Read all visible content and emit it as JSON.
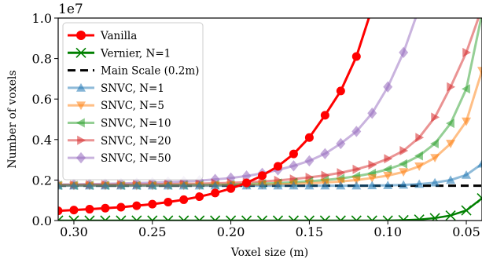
{
  "chart_data": {
    "type": "line",
    "title": "",
    "xlabel": "Voxel size (m)",
    "ylabel": "Number of voxels",
    "y_multiplier_label": "1e7",
    "x_range": [
      0.31,
      0.04
    ],
    "x_inverted": true,
    "y_range": [
      0.0,
      1.0
    ],
    "y_unit_multiplier": 10000000,
    "x_ticks": [
      0.3,
      0.25,
      0.2,
      0.15,
      0.1,
      0.05
    ],
    "x_tick_labels": [
      "0.30",
      "0.25",
      "0.20",
      "0.15",
      "0.10",
      "0.05"
    ],
    "y_ticks": [
      0.0,
      0.2,
      0.4,
      0.6,
      0.8,
      1.0
    ],
    "y_tick_labels": [
      "0.0",
      "0.2",
      "0.4",
      "0.6",
      "0.8",
      "1.0"
    ],
    "grid": false,
    "legend_position": "top-left",
    "x": [
      0.31,
      0.3,
      0.29,
      0.28,
      0.27,
      0.26,
      0.25,
      0.24,
      0.23,
      0.22,
      0.21,
      0.2,
      0.19,
      0.18,
      0.17,
      0.16,
      0.15,
      0.14,
      0.13,
      0.12,
      0.11,
      0.1,
      0.09,
      0.08,
      0.07,
      0.06,
      0.05,
      0.04
    ],
    "series": [
      {
        "name": "Vanilla",
        "color": "#ff0000",
        "marker": "circle",
        "style": "solid",
        "values": [
          0.048,
          0.052,
          0.056,
          0.061,
          0.066,
          0.073,
          0.081,
          0.091,
          0.103,
          0.118,
          0.136,
          0.158,
          0.186,
          0.222,
          0.268,
          0.329,
          0.41,
          0.52,
          0.64,
          0.81,
          1.05,
          null,
          null,
          null,
          null,
          null,
          null,
          null
        ]
      },
      {
        "name": "Vernier, N=1",
        "color": "#008000",
        "marker": "x",
        "style": "solid",
        "values": [
          0.0,
          0.0,
          0.0,
          0.0,
          0.0,
          0.0,
          0.0,
          0.0,
          0.0,
          0.0,
          0.0,
          0.0,
          0.0,
          0.0,
          0.0,
          0.0,
          0.0,
          0.0,
          0.0,
          0.0,
          0.0,
          0.0,
          0.002,
          0.005,
          0.012,
          0.025,
          0.05,
          0.11
        ]
      },
      {
        "name": "Main Scale (0.2m)",
        "color": "#000000",
        "marker": "none",
        "style": "dashed",
        "values": [
          0.172,
          0.172,
          0.172,
          0.172,
          0.172,
          0.172,
          0.172,
          0.172,
          0.172,
          0.172,
          0.172,
          0.172,
          0.172,
          0.172,
          0.172,
          0.172,
          0.172,
          0.172,
          0.172,
          0.172,
          0.172,
          0.172,
          0.172,
          0.172,
          0.172,
          0.172,
          0.172,
          0.172
        ]
      },
      {
        "name": "SNVC, N=1",
        "color": "#1f77b4",
        "marker": "triangle-up",
        "style": "solid",
        "values": [
          0.172,
          0.172,
          0.172,
          0.172,
          0.172,
          0.172,
          0.172,
          0.172,
          0.172,
          0.172,
          0.172,
          0.172,
          0.172,
          0.172,
          0.172,
          0.172,
          0.172,
          0.172,
          0.172,
          0.172,
          0.173,
          0.174,
          0.176,
          0.18,
          0.187,
          0.2,
          0.225,
          0.28
        ]
      },
      {
        "name": "SNVC, N=5",
        "color": "#ff7f0e",
        "marker": "triangle-down",
        "style": "solid",
        "values": [
          0.173,
          0.173,
          0.173,
          0.173,
          0.173,
          0.173,
          0.173,
          0.173,
          0.173,
          0.173,
          0.174,
          0.175,
          0.176,
          0.177,
          0.179,
          0.181,
          0.184,
          0.188,
          0.193,
          0.2,
          0.21,
          0.222,
          0.24,
          0.268,
          0.31,
          0.38,
          0.49,
          0.74
        ]
      },
      {
        "name": "SNVC, N=10",
        "color": "#2ca02c",
        "marker": "triangle-left",
        "style": "solid",
        "values": [
          0.174,
          0.174,
          0.174,
          0.174,
          0.174,
          0.174,
          0.174,
          0.175,
          0.175,
          0.176,
          0.177,
          0.178,
          0.18,
          0.182,
          0.185,
          0.189,
          0.194,
          0.2,
          0.208,
          0.219,
          0.233,
          0.253,
          0.28,
          0.32,
          0.38,
          0.48,
          0.65,
          1.02
        ]
      },
      {
        "name": "SNVC, N=20",
        "color": "#d62728",
        "marker": "triangle-right",
        "style": "solid",
        "values": [
          0.176,
          0.176,
          0.177,
          0.177,
          0.178,
          0.178,
          0.179,
          0.18,
          0.181,
          0.182,
          0.184,
          0.186,
          0.189,
          0.193,
          0.198,
          0.205,
          0.213,
          0.223,
          0.236,
          0.253,
          0.275,
          0.305,
          0.345,
          0.41,
          0.51,
          0.66,
          0.83,
          1.05
        ]
      },
      {
        "name": "SNVC, N=50",
        "color": "#9467bd",
        "marker": "diamond",
        "style": "solid",
        "values": [
          0.178,
          0.179,
          0.18,
          0.181,
          0.183,
          0.185,
          0.187,
          0.19,
          0.193,
          0.197,
          0.203,
          0.21,
          0.22,
          0.233,
          0.25,
          0.27,
          0.295,
          0.33,
          0.38,
          0.44,
          0.53,
          0.66,
          0.83,
          1.05,
          null,
          null,
          null,
          null
        ]
      }
    ]
  }
}
